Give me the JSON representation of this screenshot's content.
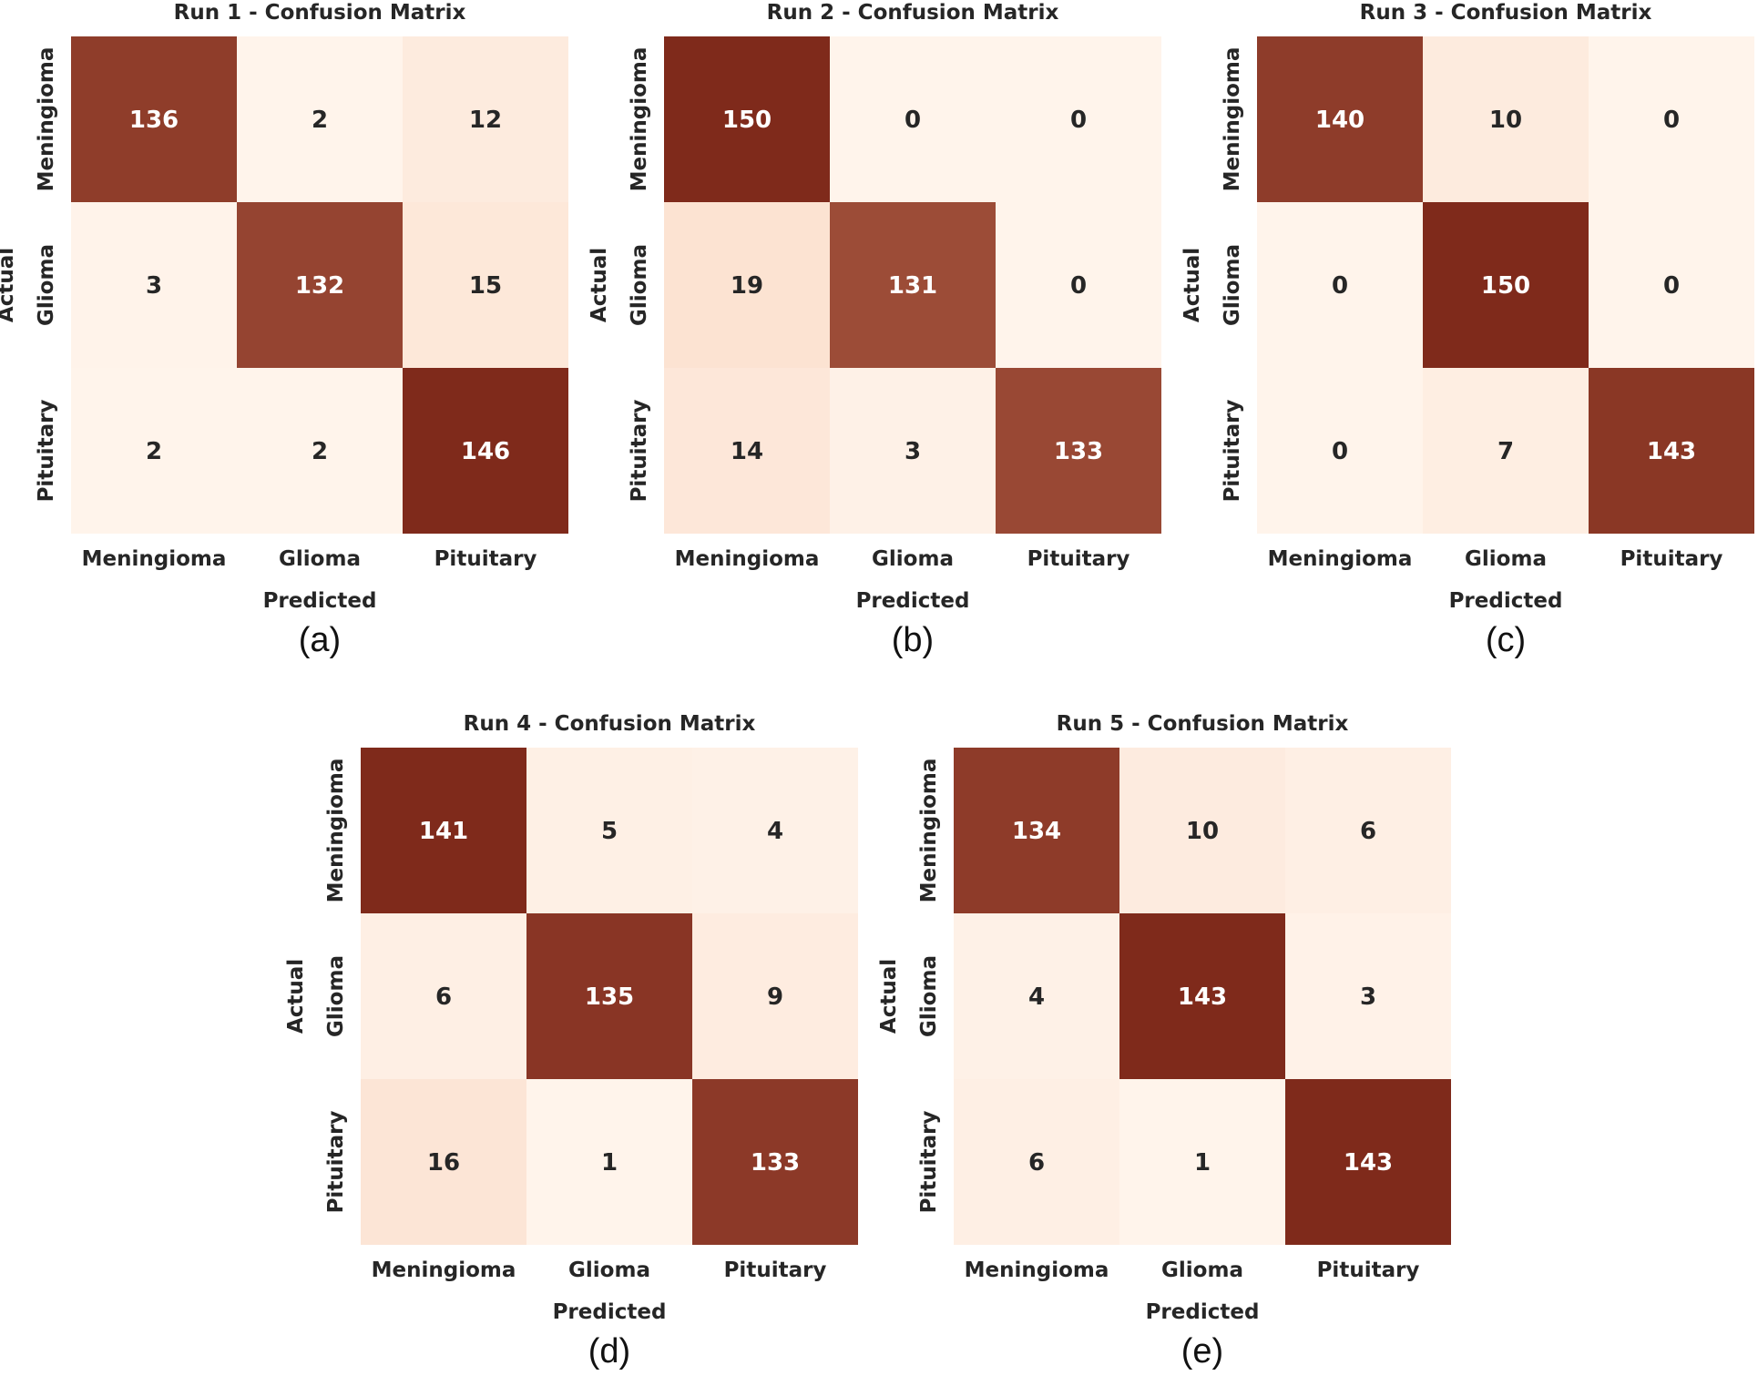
{
  "colors": {
    "low": "#fff4eb",
    "mid": "#f2b08a",
    "high": "#7f2a1b",
    "text_dark": "#262626",
    "text_light": "#ffffff"
  },
  "chart_data": [
    {
      "type": "heatmap",
      "panel": "(a)",
      "title": "Run 1 - Confusion Matrix",
      "xlabel": "Predicted",
      "ylabel": "Actual",
      "x_categories": [
        "Meningioma",
        "Glioma",
        "Pituitary"
      ],
      "y_categories": [
        "Meningioma",
        "Glioma",
        "Pituitary"
      ],
      "values": [
        [
          136,
          2,
          12
        ],
        [
          3,
          132,
          15
        ],
        [
          2,
          2,
          146
        ]
      ]
    },
    {
      "type": "heatmap",
      "panel": "(b)",
      "title": "Run 2 - Confusion Matrix",
      "xlabel": "Predicted",
      "ylabel": "Actual",
      "x_categories": [
        "Meningioma",
        "Glioma",
        "Pituitary"
      ],
      "y_categories": [
        "Meningioma",
        "Glioma",
        "Pituitary"
      ],
      "values": [
        [
          150,
          0,
          0
        ],
        [
          19,
          131,
          0
        ],
        [
          14,
          3,
          133
        ]
      ]
    },
    {
      "type": "heatmap",
      "panel": "(c)",
      "title": "Run 3 - Confusion Matrix",
      "xlabel": "Predicted",
      "ylabel": "Actual",
      "x_categories": [
        "Meningioma",
        "Glioma",
        "Pituitary"
      ],
      "y_categories": [
        "Meningioma",
        "Glioma",
        "Pituitary"
      ],
      "values": [
        [
          140,
          10,
          0
        ],
        [
          0,
          150,
          0
        ],
        [
          0,
          7,
          143
        ]
      ]
    },
    {
      "type": "heatmap",
      "panel": "(d)",
      "title": "Run 4 - Confusion Matrix",
      "xlabel": "Predicted",
      "ylabel": "Actual",
      "x_categories": [
        "Meningioma",
        "Glioma",
        "Pituitary"
      ],
      "y_categories": [
        "Meningioma",
        "Glioma",
        "Pituitary"
      ],
      "values": [
        [
          141,
          5,
          4
        ],
        [
          6,
          135,
          9
        ],
        [
          16,
          1,
          133
        ]
      ]
    },
    {
      "type": "heatmap",
      "panel": "(e)",
      "title": "Run 5 - Confusion Matrix",
      "xlabel": "Predicted",
      "ylabel": "Actual",
      "x_categories": [
        "Meningioma",
        "Glioma",
        "Pituitary"
      ],
      "y_categories": [
        "Meningioma",
        "Glioma",
        "Pituitary"
      ],
      "values": [
        [
          134,
          10,
          6
        ],
        [
          4,
          143,
          3
        ],
        [
          6,
          1,
          143
        ]
      ]
    }
  ]
}
